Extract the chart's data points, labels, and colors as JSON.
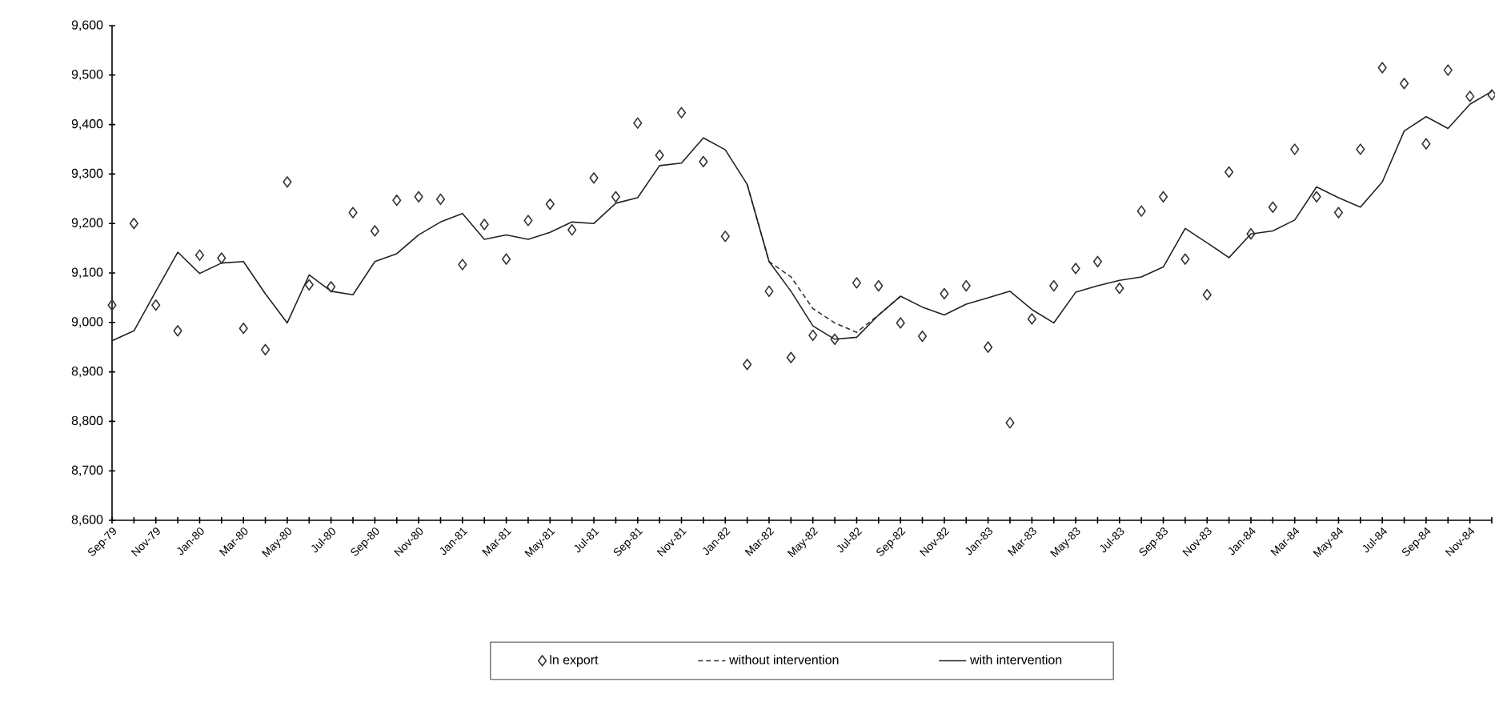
{
  "chart_data": {
    "type": "line",
    "categories": [
      "Sep-79",
      null,
      "Nov-79",
      null,
      "Jan-80",
      null,
      "Mar-80",
      null,
      "May-80",
      null,
      "Jul-80",
      null,
      "Sep-80",
      null,
      "Nov-80",
      null,
      "Jan-81",
      null,
      "Mar-81",
      null,
      "May-81",
      null,
      "Jul-81",
      null,
      "Sep-81",
      null,
      "Nov-81",
      null,
      "Jan-82",
      null,
      "Mar-82",
      null,
      "May-82",
      null,
      "Jul-82",
      null,
      "Sep-82",
      null,
      "Nov-82",
      null,
      "Jan-83",
      null,
      "Mar-83",
      null,
      "May-83",
      null,
      "Jul-83",
      null,
      "Sep-83",
      null,
      "Nov-83",
      null,
      "Jan-84",
      null,
      "Mar-84",
      null,
      "May-84",
      null,
      "Jul-84",
      null,
      "Sep-84",
      null,
      "Nov-84",
      null
    ],
    "series": [
      {
        "name": "ln export",
        "type": "scatter",
        "marker": "diamond",
        "color": "#333333",
        "values": [
          9035,
          9200,
          9035,
          8983,
          9136,
          9130,
          8988,
          8945,
          9284,
          9076,
          9072,
          9222,
          9185,
          9247,
          9254,
          9249,
          9117,
          9198,
          9128,
          9206,
          9239,
          9187,
          9292,
          9254,
          9403,
          9338,
          9424,
          9325,
          9174,
          8915,
          9063,
          8929,
          8974,
          8966,
          9080,
          9074,
          8999,
          8972,
          9058,
          9074,
          8950,
          8797,
          9007,
          9074,
          9109,
          9123,
          9069,
          9225,
          9254,
          9128,
          9056,
          9304,
          9179,
          9233,
          9350,
          9254,
          9222,
          9350,
          9515,
          9483,
          9361,
          9510,
          9457,
          9460
        ]
      },
      {
        "name": "without intervention",
        "type": "line",
        "line_style": "dashed",
        "color": "#333333",
        "values": [
          null,
          null,
          null,
          null,
          null,
          null,
          null,
          null,
          null,
          null,
          null,
          null,
          null,
          null,
          null,
          null,
          null,
          null,
          null,
          null,
          null,
          null,
          null,
          null,
          null,
          null,
          null,
          null,
          null,
          9279,
          9123,
          9092,
          9028,
          8999,
          8980,
          9015,
          9053,
          null,
          null,
          null,
          null,
          null,
          null,
          null,
          null,
          null,
          null,
          null,
          null,
          null,
          null,
          null,
          null,
          null,
          null,
          null,
          null,
          null,
          null,
          null,
          null,
          null,
          null,
          null
        ]
      },
      {
        "name": "with intervention",
        "line_style": "solid",
        "color": "#222222",
        "values": [
          8963,
          8983,
          9063,
          9142,
          9099,
          9120,
          9123,
          9058,
          8999,
          9096,
          9063,
          9056,
          9123,
          9139,
          9177,
          9203,
          9220,
          9168,
          9177,
          9168,
          9182,
          9203,
          9200,
          9241,
          9252,
          9317,
          9322,
          9373,
          9349,
          9279,
          9123,
          9063,
          8993,
          8966,
          8970,
          9015,
          9053,
          9031,
          9015,
          9037,
          9050,
          9063,
          9026,
          8999,
          9061,
          9074,
          9085,
          9092,
          9112,
          9190,
          9161,
          9131,
          9179,
          9185,
          9207,
          9274,
          9252,
          9233,
          9284,
          9387,
          9416,
          9392,
          9441,
          9467
        ]
      }
    ],
    "ylim": [
      8600,
      9600
    ],
    "yticks": [
      {
        "value": 8600,
        "label": "8,600"
      },
      {
        "value": 8700,
        "label": "8,700"
      },
      {
        "value": 8800,
        "label": "8,800"
      },
      {
        "value": 8900,
        "label": "8,900"
      },
      {
        "value": 9000,
        "label": "9,000"
      },
      {
        "value": 9100,
        "label": "9,100"
      },
      {
        "value": 9200,
        "label": "9,200"
      },
      {
        "value": 9300,
        "label": "9,300"
      },
      {
        "value": 9400,
        "label": "9,400"
      },
      {
        "value": 9500,
        "label": "9,500"
      },
      {
        "value": 9600,
        "label": "9,600"
      }
    ],
    "legend": "bottom"
  }
}
